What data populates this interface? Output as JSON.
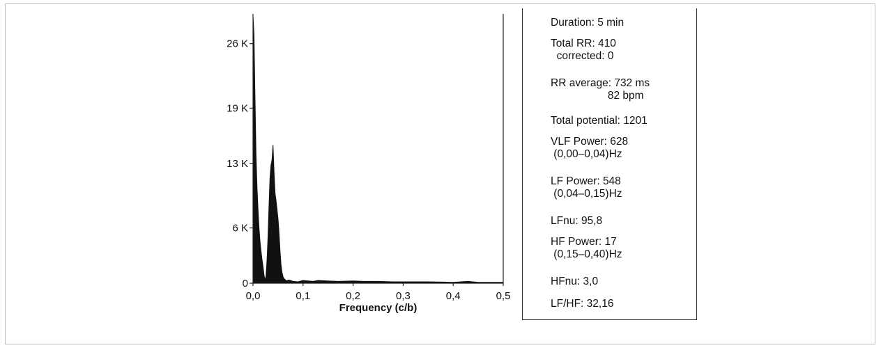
{
  "chart_data": {
    "type": "area",
    "xlabel": "Frequency (c/b)",
    "ylabel": "",
    "x_ticks": [
      "0,0",
      "0,1",
      "0,2",
      "0,3",
      "0,4",
      "0,5"
    ],
    "x_tick_values": [
      0,
      0.1,
      0.2,
      0.3,
      0.4,
      0.5
    ],
    "y_ticks": [
      "0",
      "6 K",
      "13 K",
      "19 K",
      "26 K"
    ],
    "y_tick_values": [
      0,
      6000,
      13000,
      19000,
      26000
    ],
    "xlim": [
      0,
      0.5
    ],
    "ylim": [
      0,
      29000
    ],
    "grid": false,
    "series": [
      {
        "x": [
          0.0,
          0.002,
          0.004,
          0.006,
          0.008,
          0.01,
          0.012,
          0.014,
          0.016,
          0.018,
          0.02,
          0.022,
          0.024,
          0.026,
          0.028,
          0.03,
          0.032,
          0.034,
          0.036,
          0.038,
          0.04,
          0.042,
          0.044,
          0.046,
          0.048,
          0.05,
          0.052,
          0.054,
          0.056,
          0.058,
          0.06,
          0.062,
          0.064,
          0.066,
          0.068,
          0.07,
          0.075,
          0.08,
          0.09,
          0.1,
          0.12,
          0.13,
          0.15,
          0.17,
          0.2,
          0.22,
          0.25,
          0.28,
          0.3,
          0.35,
          0.4,
          0.43,
          0.45,
          0.5
        ],
        "values": [
          29000,
          27000,
          20000,
          14000,
          10500,
          8000,
          6000,
          4500,
          3500,
          2600,
          1800,
          900,
          300,
          800,
          2500,
          5000,
          8500,
          11500,
          12800,
          13400,
          15000,
          12000,
          9800,
          9000,
          8000,
          7000,
          5500,
          3500,
          2000,
          1200,
          700,
          500,
          400,
          300,
          250,
          350,
          300,
          200,
          150,
          300,
          200,
          300,
          250,
          200,
          250,
          200,
          200,
          150,
          150,
          150,
          100,
          200,
          100,
          100
        ]
      }
    ]
  },
  "stats": [
    "Duration: 5 min",
    "Total RR: 410",
    "  corrected: 0",
    "RR average: 732 ms",
    "                   82 bpm",
    "Total potential: 1201",
    "VLF Power: 628",
    " (0,00–0,04)Hz",
    "LF Power: 548",
    " (0,04–0,15)Hz",
    "LFnu: 95,8",
    "HF Power: 17",
    " (0,15–0,40)Hz",
    "HFnu: 3,0",
    "LF/HF: 32,16"
  ]
}
